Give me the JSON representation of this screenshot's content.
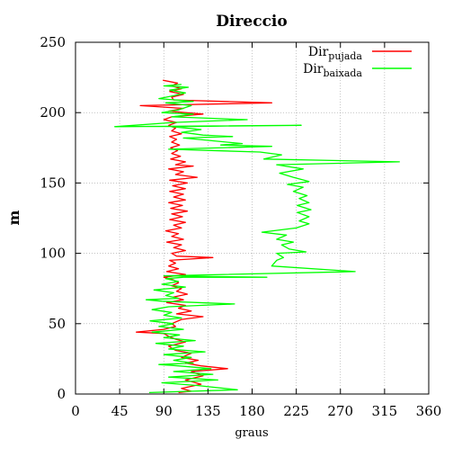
{
  "chart_data": {
    "type": "line",
    "title": "Direccio",
    "xlabel": "graus",
    "ylabel": "m",
    "xlim": [
      0,
      360
    ],
    "ylim": [
      0,
      250
    ],
    "xticks": [
      "0",
      "45",
      "90",
      "135",
      "180",
      "225",
      "270",
      "315",
      "360"
    ],
    "yticks": [
      "0",
      "50",
      "100",
      "150",
      "200",
      "250"
    ],
    "grid": true,
    "legend_position": "top-right",
    "series": [
      {
        "name": "Dir pujada",
        "name_main": "Dir",
        "name_sub": "pujada",
        "color": "#ff0000",
        "points": [
          [
            105,
            1
          ],
          [
            118,
            2
          ],
          [
            108,
            4
          ],
          [
            128,
            7
          ],
          [
            112,
            10
          ],
          [
            130,
            13
          ],
          [
            118,
            16
          ],
          [
            155,
            18
          ],
          [
            128,
            20
          ],
          [
            112,
            22
          ],
          [
            125,
            24
          ],
          [
            108,
            26
          ],
          [
            118,
            29
          ],
          [
            102,
            31
          ],
          [
            95,
            34
          ],
          [
            112,
            37
          ],
          [
            102,
            39
          ],
          [
            95,
            41
          ],
          [
            90,
            43
          ],
          [
            62,
            44
          ],
          [
            90,
            46
          ],
          [
            102,
            48
          ],
          [
            98,
            50
          ],
          [
            108,
            53
          ],
          [
            130,
            55
          ],
          [
            103,
            57
          ],
          [
            118,
            59
          ],
          [
            105,
            61
          ],
          [
            112,
            63
          ],
          [
            93,
            65
          ],
          [
            110,
            67
          ],
          [
            100,
            69
          ],
          [
            114,
            71
          ],
          [
            103,
            73
          ],
          [
            108,
            75
          ],
          [
            98,
            77
          ],
          [
            105,
            79
          ],
          [
            100,
            81
          ],
          [
            90,
            83
          ],
          [
            112,
            85
          ],
          [
            93,
            87
          ],
          [
            105,
            89
          ],
          [
            95,
            91
          ],
          [
            102,
            93
          ],
          [
            96,
            95
          ],
          [
            140,
            97
          ],
          [
            103,
            98
          ],
          [
            98,
            100
          ],
          [
            112,
            102
          ],
          [
            100,
            104
          ],
          [
            108,
            106
          ],
          [
            93,
            108
          ],
          [
            110,
            110
          ],
          [
            98,
            112
          ],
          [
            105,
            114
          ],
          [
            92,
            116
          ],
          [
            108,
            118
          ],
          [
            100,
            120
          ],
          [
            112,
            122
          ],
          [
            96,
            124
          ],
          [
            109,
            126
          ],
          [
            98,
            128
          ],
          [
            114,
            130
          ],
          [
            97,
            132
          ],
          [
            109,
            134
          ],
          [
            95,
            136
          ],
          [
            112,
            138
          ],
          [
            100,
            140
          ],
          [
            110,
            142
          ],
          [
            96,
            144
          ],
          [
            112,
            146
          ],
          [
            99,
            148
          ],
          [
            114,
            150
          ],
          [
            96,
            152
          ],
          [
            124,
            154
          ],
          [
            102,
            156
          ],
          [
            110,
            158
          ],
          [
            95,
            160
          ],
          [
            120,
            162
          ],
          [
            102,
            163
          ],
          [
            112,
            165
          ],
          [
            97,
            167
          ],
          [
            107,
            169
          ],
          [
            98,
            171
          ],
          [
            104,
            173
          ],
          [
            97,
            175
          ],
          [
            106,
            177
          ],
          [
            98,
            179
          ],
          [
            103,
            181
          ],
          [
            96,
            183
          ],
          [
            108,
            185
          ],
          [
            98,
            187
          ],
          [
            102,
            189
          ],
          [
            95,
            191
          ],
          [
            103,
            193
          ],
          [
            90,
            195
          ],
          [
            98,
            197
          ],
          [
            130,
            199
          ],
          [
            95,
            201
          ],
          [
            110,
            203
          ],
          [
            66,
            205
          ],
          [
            200,
            207
          ],
          [
            100,
            209
          ],
          [
            98,
            211
          ],
          [
            110,
            213
          ],
          [
            96,
            215
          ],
          [
            108,
            217
          ],
          [
            98,
            219
          ],
          [
            104,
            221
          ],
          [
            89,
            223
          ]
        ]
      },
      {
        "name": "Dir baixada",
        "name_main": "Dir",
        "name_sub": "baixada",
        "color": "#00ff00",
        "points": [
          [
            75,
            1
          ],
          [
            165,
            3
          ],
          [
            125,
            6
          ],
          [
            88,
            8
          ],
          [
            145,
            10
          ],
          [
            95,
            12
          ],
          [
            140,
            14
          ],
          [
            100,
            16
          ],
          [
            138,
            18
          ],
          [
            105,
            20
          ],
          [
            85,
            21
          ],
          [
            120,
            22
          ],
          [
            100,
            24
          ],
          [
            118,
            26
          ],
          [
            90,
            28
          ],
          [
            132,
            30
          ],
          [
            95,
            32
          ],
          [
            110,
            34
          ],
          [
            82,
            36
          ],
          [
            122,
            38
          ],
          [
            90,
            40
          ],
          [
            106,
            42
          ],
          [
            78,
            44
          ],
          [
            110,
            46
          ],
          [
            85,
            48
          ],
          [
            100,
            50
          ],
          [
            76,
            52
          ],
          [
            108,
            54
          ],
          [
            90,
            56
          ],
          [
            98,
            58
          ],
          [
            78,
            60
          ],
          [
            95,
            62
          ],
          [
            162,
            64
          ],
          [
            88,
            66
          ],
          [
            72,
            67
          ],
          [
            105,
            68
          ],
          [
            92,
            70
          ],
          [
            100,
            72
          ],
          [
            80,
            74
          ],
          [
            112,
            76
          ],
          [
            88,
            78
          ],
          [
            105,
            80
          ],
          [
            92,
            82
          ],
          [
            110,
            83
          ],
          [
            195,
            83
          ],
          [
            90,
            84
          ],
          [
            285,
            87
          ],
          [
            200,
            91
          ],
          [
            205,
            95
          ],
          [
            212,
            97
          ],
          [
            205,
            100
          ],
          [
            235,
            101
          ],
          [
            218,
            103
          ],
          [
            210,
            106
          ],
          [
            222,
            108
          ],
          [
            205,
            110
          ],
          [
            215,
            113
          ],
          [
            190,
            115
          ],
          [
            225,
            118
          ],
          [
            238,
            121
          ],
          [
            228,
            123
          ],
          [
            238,
            126
          ],
          [
            226,
            129
          ],
          [
            240,
            131
          ],
          [
            226,
            134
          ],
          [
            238,
            136
          ],
          [
            228,
            139
          ],
          [
            236,
            141
          ],
          [
            222,
            144
          ],
          [
            232,
            147
          ],
          [
            216,
            149
          ],
          [
            238,
            151
          ],
          [
            222,
            154
          ],
          [
            208,
            157
          ],
          [
            232,
            160
          ],
          [
            205,
            163
          ],
          [
            330,
            165
          ],
          [
            192,
            167
          ],
          [
            210,
            170
          ],
          [
            188,
            172
          ],
          [
            95,
            174
          ],
          [
            200,
            176
          ],
          [
            148,
            177
          ],
          [
            170,
            178
          ],
          [
            140,
            180
          ],
          [
            110,
            182
          ],
          [
            160,
            183
          ],
          [
            130,
            184
          ],
          [
            120,
            185
          ],
          [
            108,
            186
          ],
          [
            128,
            188
          ],
          [
            98,
            190
          ],
          [
            230,
            191
          ],
          [
            40,
            190
          ],
          [
            100,
            193
          ],
          [
            175,
            195
          ],
          [
            98,
            197
          ],
          [
            120,
            199
          ],
          [
            88,
            200
          ],
          [
            105,
            202
          ],
          [
            118,
            205
          ],
          [
            92,
            207
          ],
          [
            120,
            208
          ],
          [
            85,
            210
          ],
          [
            100,
            212
          ],
          [
            112,
            214
          ],
          [
            96,
            216
          ],
          [
            115,
            218
          ],
          [
            90,
            219
          ],
          [
            108,
            220
          ]
        ]
      }
    ]
  }
}
